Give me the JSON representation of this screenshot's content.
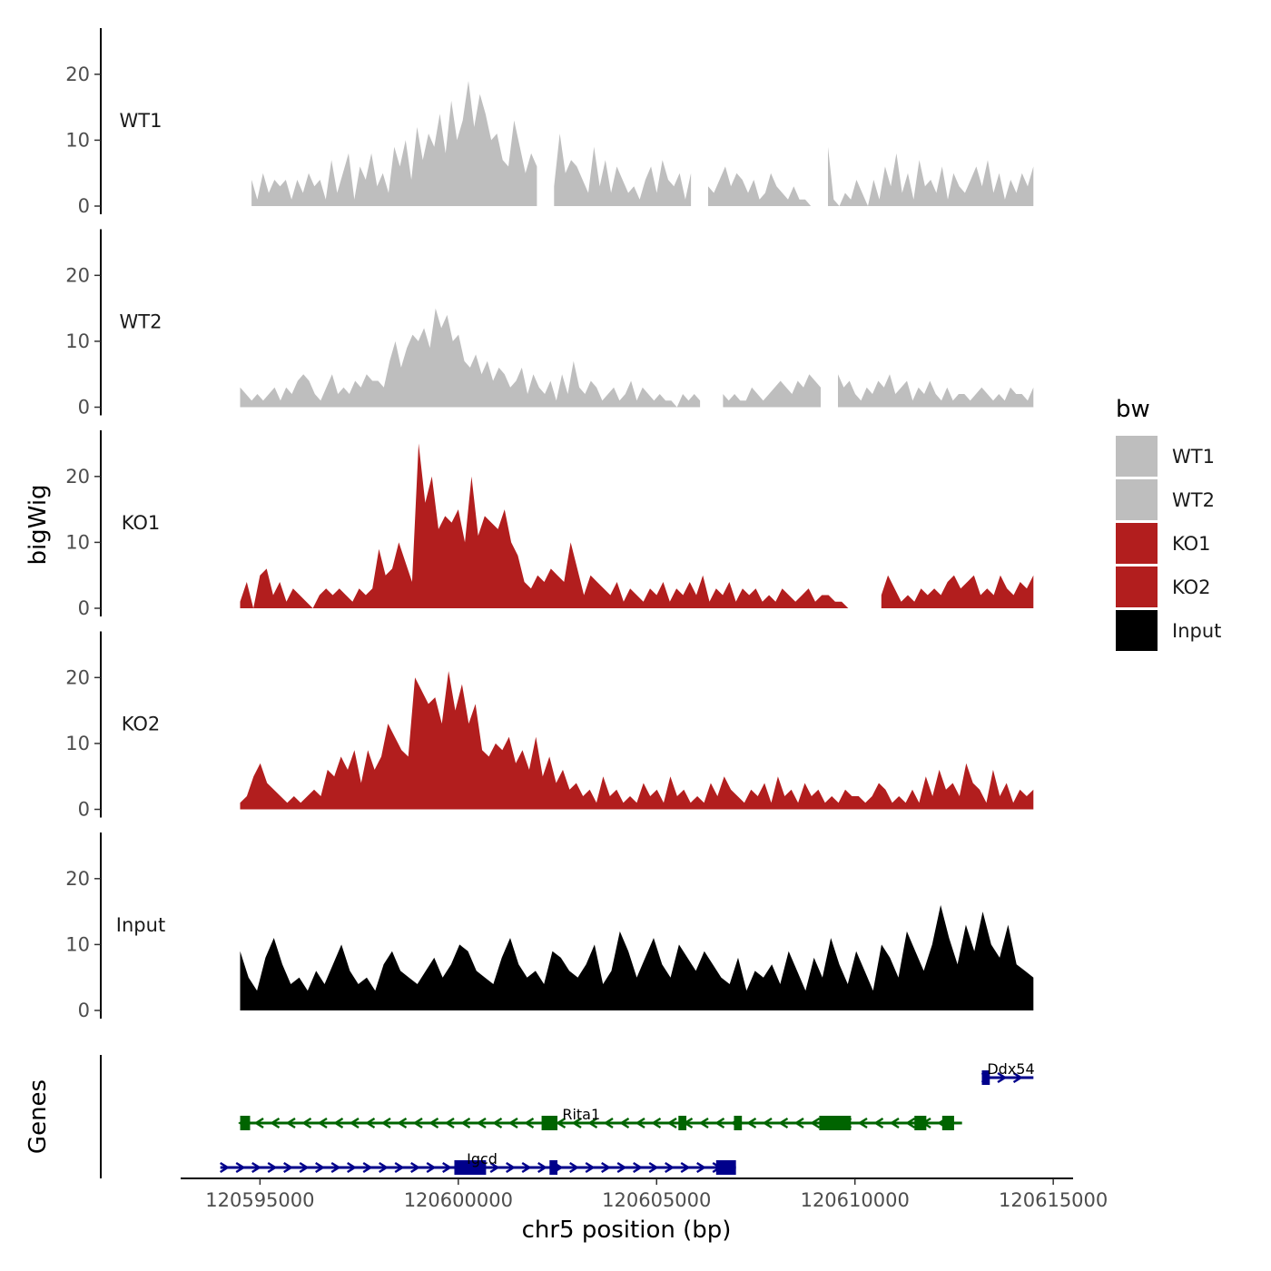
{
  "chart_data": {
    "type": "area",
    "title": "",
    "ylabel": "bigWig",
    "xlabel": "chr5 position (bp)",
    "xlim": [
      120593000,
      120615500
    ],
    "ylim": [
      0,
      27
    ],
    "y_ticks": [
      0,
      10,
      20
    ],
    "x_ticks": [
      120595000,
      120600000,
      120605000,
      120610000,
      120615000
    ],
    "x_tick_labels": [
      "120595000",
      "120600000",
      "120605000",
      "120610000",
      "120615000"
    ],
    "legend": {
      "title": "bw",
      "position": "right",
      "entries": [
        {
          "label": "WT1",
          "color": "#bebebe"
        },
        {
          "label": "WT2",
          "color": "#bebebe"
        },
        {
          "label": "KO1",
          "color": "#b21e1e"
        },
        {
          "label": "KO2",
          "color": "#b21e1e"
        },
        {
          "label": "Input",
          "color": "#000000"
        }
      ]
    },
    "tracks": [
      {
        "name": "WT1",
        "color": "#bebebe",
        "start": 120594500,
        "end": 120614500,
        "values": [
          0,
          3,
          4,
          1,
          5,
          2,
          4,
          3,
          4,
          1,
          4,
          2,
          5,
          3,
          4,
          1,
          7,
          2,
          5,
          8,
          1,
          6,
          4,
          8,
          3,
          5,
          2,
          9,
          6,
          10,
          4,
          12,
          7,
          11,
          9,
          14,
          8,
          16,
          10,
          13,
          19,
          12,
          17,
          14,
          10,
          11,
          7,
          6,
          13,
          9,
          5,
          8,
          6,
          4,
          10,
          3,
          11,
          5,
          7,
          6,
          4,
          2,
          9,
          3,
          7,
          2,
          6,
          4,
          2,
          3,
          1,
          4,
          6,
          2,
          7,
          4,
          3,
          5,
          1,
          5,
          2,
          0,
          3,
          2,
          4,
          6,
          3,
          5,
          4,
          2,
          4,
          1,
          2,
          5,
          3,
          2,
          1,
          3,
          1,
          1,
          0,
          3,
          4,
          9,
          1,
          0,
          2,
          1,
          4,
          2,
          0,
          4,
          1,
          6,
          3,
          8,
          2,
          5,
          1,
          7,
          3,
          4,
          2,
          6,
          1,
          5,
          3,
          2,
          4,
          6,
          3,
          7,
          2,
          5,
          1,
          4,
          2,
          5,
          3,
          6
        ],
        "gaps": [
          [
            0,
            1
          ],
          [
            53,
            54
          ],
          [
            80,
            81
          ],
          [
            101,
            102
          ]
        ]
      },
      {
        "name": "WT2",
        "color": "#bebebe",
        "start": 120594500,
        "end": 120614500,
        "values": [
          3,
          2,
          1,
          2,
          1,
          2,
          3,
          1,
          3,
          2,
          4,
          5,
          4,
          2,
          1,
          3,
          5,
          2,
          3,
          2,
          4,
          3,
          5,
          4,
          4,
          3,
          7,
          10,
          6,
          9,
          11,
          10,
          12,
          9,
          15,
          12,
          14,
          10,
          11,
          7,
          6,
          8,
          5,
          7,
          4,
          6,
          5,
          3,
          4,
          6,
          2,
          5,
          3,
          2,
          4,
          1,
          5,
          2,
          7,
          3,
          2,
          4,
          3,
          1,
          2,
          3,
          1,
          2,
          4,
          1,
          3,
          2,
          1,
          2,
          1,
          1,
          0,
          2,
          1,
          2,
          1,
          1,
          2,
          1,
          2,
          1,
          2,
          1,
          1,
          3,
          2,
          1,
          2,
          3,
          4,
          3,
          2,
          4,
          3,
          5,
          4,
          3,
          2,
          4,
          5,
          3,
          4,
          2,
          1,
          3,
          2,
          4,
          3,
          5,
          2,
          3,
          4,
          1,
          3,
          2,
          4,
          2,
          1,
          3,
          1,
          2,
          2,
          1,
          2,
          3,
          2,
          1,
          2,
          1,
          3,
          2,
          2,
          1,
          3
        ],
        "gaps": [
          [
            81,
            83
          ],
          [
            102,
            103
          ]
        ]
      },
      {
        "name": "KO1",
        "color": "#b21e1e",
        "start": 120594500,
        "end": 120614500,
        "values": [
          1,
          4,
          0,
          5,
          6,
          2,
          4,
          1,
          3,
          2,
          1,
          0,
          2,
          3,
          2,
          3,
          2,
          1,
          3,
          2,
          3,
          9,
          5,
          6,
          10,
          7,
          4,
          25,
          16,
          20,
          12,
          14,
          13,
          15,
          10,
          20,
          11,
          14,
          13,
          12,
          15,
          10,
          8,
          4,
          3,
          5,
          4,
          6,
          5,
          4,
          10,
          6,
          2,
          5,
          4,
          3,
          2,
          4,
          1,
          3,
          2,
          1,
          3,
          2,
          4,
          1,
          3,
          2,
          4,
          2,
          5,
          1,
          3,
          2,
          4,
          1,
          3,
          2,
          3,
          1,
          2,
          1,
          3,
          2,
          1,
          2,
          3,
          1,
          2,
          2,
          1,
          1,
          0,
          0,
          2,
          1,
          3,
          2,
          5,
          3,
          1,
          2,
          1,
          3,
          2,
          3,
          2,
          4,
          5,
          3,
          4,
          5,
          2,
          3,
          2,
          5,
          3,
          2,
          4,
          3,
          5
        ],
        "gaps": [
          [
            93,
            96
          ]
        ]
      },
      {
        "name": "KO2",
        "color": "#b21e1e",
        "start": 120594500,
        "end": 120614500,
        "values": [
          1,
          2,
          5,
          7,
          4,
          3,
          2,
          1,
          2,
          1,
          2,
          3,
          2,
          6,
          5,
          8,
          6,
          9,
          4,
          9,
          6,
          8,
          13,
          11,
          9,
          8,
          20,
          18,
          16,
          17,
          13,
          21,
          15,
          19,
          13,
          16,
          9,
          8,
          10,
          9,
          11,
          7,
          9,
          6,
          11,
          5,
          8,
          4,
          6,
          3,
          4,
          2,
          3,
          1,
          5,
          2,
          3,
          1,
          2,
          1,
          4,
          2,
          3,
          1,
          5,
          2,
          3,
          1,
          2,
          1,
          4,
          2,
          5,
          3,
          2,
          1,
          3,
          2,
          4,
          1,
          5,
          2,
          3,
          1,
          4,
          2,
          3,
          1,
          2,
          1,
          3,
          2,
          2,
          1,
          2,
          4,
          3,
          1,
          2,
          1,
          3,
          1,
          5,
          2,
          6,
          3,
          4,
          2,
          7,
          4,
          3,
          1,
          6,
          2,
          4,
          1,
          3,
          2,
          3
        ],
        "gaps": []
      },
      {
        "name": "Input",
        "color": "#000000",
        "start": 120594500,
        "end": 120614500,
        "values": [
          9,
          5,
          3,
          8,
          11,
          7,
          4,
          5,
          3,
          6,
          4,
          7,
          10,
          6,
          4,
          5,
          3,
          7,
          9,
          6,
          5,
          4,
          6,
          8,
          5,
          7,
          10,
          9,
          6,
          5,
          4,
          8,
          11,
          7,
          5,
          6,
          4,
          9,
          8,
          6,
          5,
          7,
          10,
          4,
          6,
          12,
          9,
          5,
          8,
          11,
          7,
          5,
          10,
          8,
          6,
          9,
          7,
          5,
          4,
          8,
          3,
          6,
          5,
          7,
          4,
          9,
          6,
          3,
          8,
          5,
          11,
          7,
          4,
          9,
          6,
          3,
          10,
          8,
          5,
          12,
          9,
          6,
          10,
          16,
          11,
          7,
          13,
          9,
          15,
          10,
          8,
          13,
          7,
          6,
          5
        ],
        "gaps": []
      }
    ],
    "genes_label": "Genes",
    "genes": [
      {
        "name": "Ddx54",
        "color": "#00008b",
        "strand": "+",
        "start": 120613200,
        "end": 120614500,
        "exons": [
          [
            120613200,
            120613400
          ]
        ]
      },
      {
        "name": "Rita1",
        "color": "#006400",
        "strand": "-",
        "start": 120594500,
        "end": 120612700,
        "exons": [
          [
            120594500,
            120594750
          ],
          [
            120602100,
            120602500
          ],
          [
            120605550,
            120605750
          ],
          [
            120606950,
            120607150
          ],
          [
            120609100,
            120609900
          ],
          [
            120611500,
            120611800
          ],
          [
            120612200,
            120612500
          ]
        ]
      },
      {
        "name": "Igcd",
        "color": "#00008b",
        "strand": "+",
        "start": 120594000,
        "end": 120607000,
        "exons": [
          [
            120599900,
            120600700
          ],
          [
            120602300,
            120602500
          ],
          [
            120606500,
            120607000
          ]
        ]
      }
    ]
  }
}
